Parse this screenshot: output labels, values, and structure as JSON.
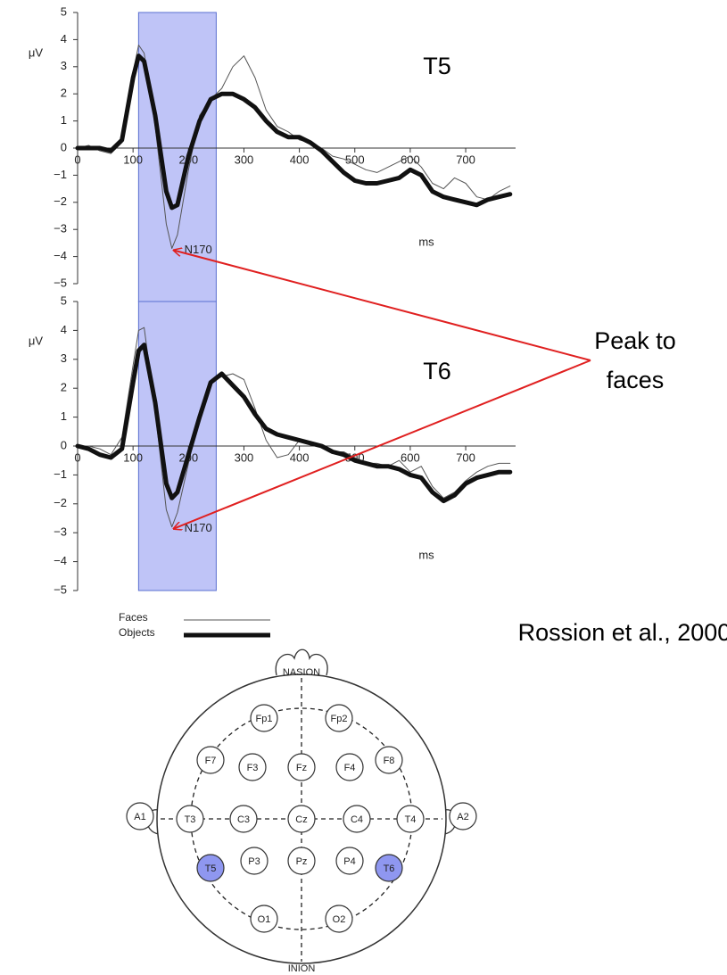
{
  "chart_data": [
    {
      "type": "line",
      "title": "T5",
      "y_label": "μV",
      "x_label": "ms",
      "xlim": [
        0,
        790
      ],
      "ylim": [
        -5,
        5
      ],
      "xticks": [
        0,
        100,
        200,
        300,
        400,
        500,
        600,
        700
      ],
      "yticks": [
        {
          "value": -5,
          "label": "−5"
        },
        {
          "value": -4,
          "label": "−4"
        },
        {
          "value": -3,
          "label": "−3"
        },
        {
          "value": -2,
          "label": "−2"
        },
        {
          "value": -1,
          "label": "−1"
        },
        0,
        1,
        2,
        3,
        4,
        5
      ],
      "highlight": {
        "x_range": [
          110,
          250
        ],
        "color": "#aab0f4"
      },
      "annotation": {
        "text": "N170",
        "x": 170,
        "y": -3.7
      },
      "x": [
        0,
        20,
        40,
        60,
        80,
        100,
        110,
        120,
        140,
        160,
        170,
        180,
        200,
        220,
        240,
        260,
        280,
        300,
        320,
        340,
        360,
        380,
        400,
        420,
        440,
        460,
        480,
        500,
        520,
        540,
        560,
        580,
        600,
        620,
        640,
        660,
        680,
        700,
        720,
        740,
        760,
        780
      ],
      "series": [
        {
          "name": "Faces",
          "color": "#555555",
          "line_width": 1,
          "values": [
            0,
            0.1,
            -0.1,
            -0.2,
            0.2,
            2.8,
            3.8,
            3.5,
            0.8,
            -2.8,
            -3.7,
            -3.2,
            -0.8,
            1.2,
            1.8,
            2.2,
            3.0,
            3.4,
            2.6,
            1.4,
            0.8,
            0.6,
            0.3,
            0.2,
            0.0,
            -0.3,
            -0.4,
            -0.6,
            -0.8,
            -0.9,
            -0.7,
            -0.5,
            -0.3,
            -0.7,
            -1.3,
            -1.5,
            -1.1,
            -1.3,
            -1.8,
            -1.9,
            -1.6,
            -1.4
          ]
        },
        {
          "name": "Objects",
          "color": "#111111",
          "line_width": 5,
          "values": [
            0,
            0,
            0,
            -0.1,
            0.3,
            2.6,
            3.4,
            3.2,
            1.2,
            -1.6,
            -2.2,
            -2.1,
            -0.3,
            1.0,
            1.8,
            2.0,
            2.0,
            1.8,
            1.5,
            1.0,
            0.6,
            0.4,
            0.4,
            0.2,
            -0.1,
            -0.5,
            -0.9,
            -1.2,
            -1.3,
            -1.3,
            -1.2,
            -1.1,
            -0.8,
            -1.0,
            -1.6,
            -1.8,
            -1.9,
            -2.0,
            -2.1,
            -1.9,
            -1.8,
            -1.7
          ]
        }
      ]
    },
    {
      "type": "line",
      "title": "T6",
      "y_label": "μV",
      "x_label": "ms",
      "xlim": [
        0,
        790
      ],
      "ylim": [
        -5,
        5
      ],
      "xticks": [
        0,
        100,
        200,
        300,
        400,
        500,
        600,
        700
      ],
      "yticks": [
        {
          "value": -5,
          "label": "−5"
        },
        {
          "value": -4,
          "label": "−4"
        },
        {
          "value": -3,
          "label": "−3"
        },
        {
          "value": -2,
          "label": "−2"
        },
        {
          "value": -1,
          "label": "−1"
        },
        0,
        1,
        2,
        3,
        4,
        5
      ],
      "highlight": {
        "x_range": [
          110,
          250
        ],
        "color": "#aab0f4"
      },
      "annotation": {
        "text": "N170",
        "x": 170,
        "y": -2.8
      },
      "x": [
        0,
        20,
        40,
        60,
        80,
        100,
        110,
        120,
        140,
        160,
        170,
        180,
        200,
        220,
        240,
        260,
        280,
        300,
        320,
        340,
        360,
        380,
        400,
        420,
        440,
        460,
        480,
        500,
        520,
        540,
        560,
        580,
        600,
        620,
        640,
        660,
        680,
        700,
        720,
        740,
        760,
        780
      ],
      "series": [
        {
          "color": "#555555",
          "line_width": 1,
          "values": [
            0,
            0,
            -0.1,
            -0.3,
            0.3,
            2.8,
            4.0,
            4.1,
            1.2,
            -2.2,
            -2.8,
            -2.3,
            -0.6,
            1.2,
            2.2,
            2.4,
            2.5,
            2.3,
            1.3,
            0.2,
            -0.4,
            -0.3,
            0.2,
            0.1,
            0.0,
            -0.2,
            -0.2,
            -0.4,
            -0.6,
            -0.6,
            -0.7,
            -0.5,
            -0.9,
            -0.7,
            -1.4,
            -1.8,
            -1.6,
            -1.2,
            -0.9,
            -0.7,
            -0.6,
            -0.6
          ]
        },
        {
          "color": "#111111",
          "line_width": 5,
          "values": [
            0,
            -0.1,
            -0.3,
            -0.4,
            -0.1,
            2.2,
            3.3,
            3.5,
            1.5,
            -1.3,
            -1.8,
            -1.6,
            -0.3,
            1.0,
            2.2,
            2.5,
            2.1,
            1.7,
            1.1,
            0.6,
            0.4,
            0.3,
            0.2,
            0.1,
            0.0,
            -0.2,
            -0.3,
            -0.5,
            -0.6,
            -0.7,
            -0.7,
            -0.8,
            -1.0,
            -1.1,
            -1.6,
            -1.9,
            -1.7,
            -1.3,
            -1.1,
            -1.0,
            -0.9,
            -0.9
          ]
        }
      ]
    }
  ],
  "callout": {
    "lines": [
      "Peak to",
      "faces"
    ],
    "color": "#e02020"
  },
  "citation": "Rossion et al., 2000",
  "montage": {
    "top_label": "NASION",
    "bottom_label": "INION",
    "highlight_color": "#8f97f0",
    "electrodes": [
      {
        "label": "Fp1"
      },
      {
        "label": "Fp2"
      },
      {
        "label": "F7"
      },
      {
        "label": "F3"
      },
      {
        "label": "Fz"
      },
      {
        "label": "F4"
      },
      {
        "label": "F8"
      },
      {
        "label": "A1"
      },
      {
        "label": "T3"
      },
      {
        "label": "C3"
      },
      {
        "label": "Cz"
      },
      {
        "label": "C4"
      },
      {
        "label": "T4"
      },
      {
        "label": "A2"
      },
      {
        "label": "T5",
        "highlight": true
      },
      {
        "label": "P3"
      },
      {
        "label": "Pz"
      },
      {
        "label": "P4"
      },
      {
        "label": "T6",
        "highlight": true
      },
      {
        "label": "O1"
      },
      {
        "label": "O2"
      }
    ]
  }
}
